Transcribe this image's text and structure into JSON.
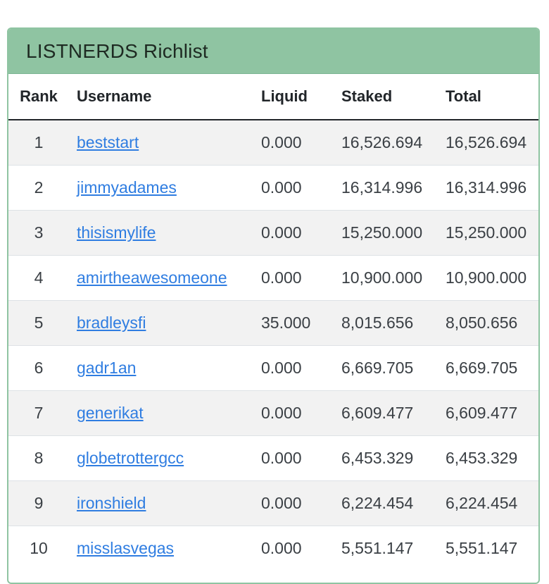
{
  "card": {
    "title": "LISTNERDS Richlist"
  },
  "columns": {
    "rank": "Rank",
    "username": "Username",
    "liquid": "Liquid",
    "staked": "Staked",
    "total": "Total"
  },
  "rows": [
    {
      "rank": "1",
      "username": "beststart",
      "liquid": "0.000",
      "staked": "16,526.694",
      "total": "16,526.694"
    },
    {
      "rank": "2",
      "username": "jimmyadames",
      "liquid": "0.000",
      "staked": "16,314.996",
      "total": "16,314.996"
    },
    {
      "rank": "3",
      "username": "thisismylife",
      "liquid": "0.000",
      "staked": "15,250.000",
      "total": "15,250.000"
    },
    {
      "rank": "4",
      "username": "amirtheawesomeone",
      "liquid": "0.000",
      "staked": "10,900.000",
      "total": "10,900.000"
    },
    {
      "rank": "5",
      "username": "bradleysfi",
      "liquid": "35.000",
      "staked": "8,015.656",
      "total": "8,050.656"
    },
    {
      "rank": "6",
      "username": "gadr1an",
      "liquid": "0.000",
      "staked": "6,669.705",
      "total": "6,669.705"
    },
    {
      "rank": "7",
      "username": "generikat",
      "liquid": "0.000",
      "staked": "6,609.477",
      "total": "6,609.477"
    },
    {
      "rank": "8",
      "username": "globetrottergcc",
      "liquid": "0.000",
      "staked": "6,453.329",
      "total": "6,453.329"
    },
    {
      "rank": "9",
      "username": "ironshield",
      "liquid": "0.000",
      "staked": "6,224.454",
      "total": "6,224.454"
    },
    {
      "rank": "10",
      "username": "misslasvegas",
      "liquid": "0.000",
      "staked": "5,551.147",
      "total": "5,551.147"
    }
  ],
  "colors": {
    "header_bg": "#8fc4a2",
    "link": "#2f7de1",
    "stripe": "#f2f2f2"
  }
}
